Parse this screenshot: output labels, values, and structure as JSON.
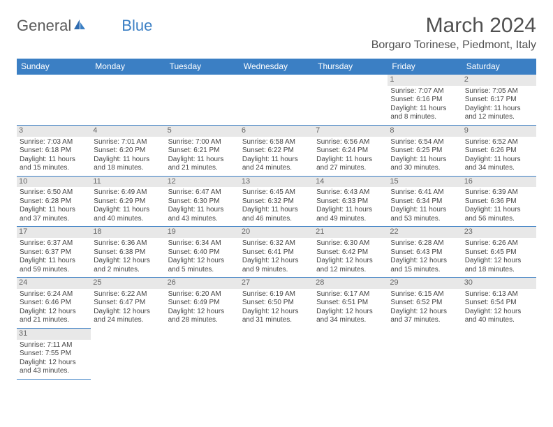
{
  "logo": {
    "general": "General",
    "blue": "Blue"
  },
  "title": "March 2024",
  "location": "Borgaro Torinese, Piedmont, Italy",
  "colors": {
    "header_bg": "#3b7fc4",
    "header_text": "#ffffff",
    "day_bg": "#e8e8e8",
    "border": "#3b7fc4",
    "text": "#444444",
    "title_text": "#505050"
  },
  "weekdays": [
    "Sunday",
    "Monday",
    "Tuesday",
    "Wednesday",
    "Thursday",
    "Friday",
    "Saturday"
  ],
  "cells": [
    {
      "day": "",
      "sunrise": "",
      "sunset": "",
      "daylight": ""
    },
    {
      "day": "",
      "sunrise": "",
      "sunset": "",
      "daylight": ""
    },
    {
      "day": "",
      "sunrise": "",
      "sunset": "",
      "daylight": ""
    },
    {
      "day": "",
      "sunrise": "",
      "sunset": "",
      "daylight": ""
    },
    {
      "day": "",
      "sunrise": "",
      "sunset": "",
      "daylight": ""
    },
    {
      "day": "1",
      "sunrise": "Sunrise: 7:07 AM",
      "sunset": "Sunset: 6:16 PM",
      "daylight": "Daylight: 11 hours and 8 minutes."
    },
    {
      "day": "2",
      "sunrise": "Sunrise: 7:05 AM",
      "sunset": "Sunset: 6:17 PM",
      "daylight": "Daylight: 11 hours and 12 minutes."
    },
    {
      "day": "3",
      "sunrise": "Sunrise: 7:03 AM",
      "sunset": "Sunset: 6:18 PM",
      "daylight": "Daylight: 11 hours and 15 minutes."
    },
    {
      "day": "4",
      "sunrise": "Sunrise: 7:01 AM",
      "sunset": "Sunset: 6:20 PM",
      "daylight": "Daylight: 11 hours and 18 minutes."
    },
    {
      "day": "5",
      "sunrise": "Sunrise: 7:00 AM",
      "sunset": "Sunset: 6:21 PM",
      "daylight": "Daylight: 11 hours and 21 minutes."
    },
    {
      "day": "6",
      "sunrise": "Sunrise: 6:58 AM",
      "sunset": "Sunset: 6:22 PM",
      "daylight": "Daylight: 11 hours and 24 minutes."
    },
    {
      "day": "7",
      "sunrise": "Sunrise: 6:56 AM",
      "sunset": "Sunset: 6:24 PM",
      "daylight": "Daylight: 11 hours and 27 minutes."
    },
    {
      "day": "8",
      "sunrise": "Sunrise: 6:54 AM",
      "sunset": "Sunset: 6:25 PM",
      "daylight": "Daylight: 11 hours and 30 minutes."
    },
    {
      "day": "9",
      "sunrise": "Sunrise: 6:52 AM",
      "sunset": "Sunset: 6:26 PM",
      "daylight": "Daylight: 11 hours and 34 minutes."
    },
    {
      "day": "10",
      "sunrise": "Sunrise: 6:50 AM",
      "sunset": "Sunset: 6:28 PM",
      "daylight": "Daylight: 11 hours and 37 minutes."
    },
    {
      "day": "11",
      "sunrise": "Sunrise: 6:49 AM",
      "sunset": "Sunset: 6:29 PM",
      "daylight": "Daylight: 11 hours and 40 minutes."
    },
    {
      "day": "12",
      "sunrise": "Sunrise: 6:47 AM",
      "sunset": "Sunset: 6:30 PM",
      "daylight": "Daylight: 11 hours and 43 minutes."
    },
    {
      "day": "13",
      "sunrise": "Sunrise: 6:45 AM",
      "sunset": "Sunset: 6:32 PM",
      "daylight": "Daylight: 11 hours and 46 minutes."
    },
    {
      "day": "14",
      "sunrise": "Sunrise: 6:43 AM",
      "sunset": "Sunset: 6:33 PM",
      "daylight": "Daylight: 11 hours and 49 minutes."
    },
    {
      "day": "15",
      "sunrise": "Sunrise: 6:41 AM",
      "sunset": "Sunset: 6:34 PM",
      "daylight": "Daylight: 11 hours and 53 minutes."
    },
    {
      "day": "16",
      "sunrise": "Sunrise: 6:39 AM",
      "sunset": "Sunset: 6:36 PM",
      "daylight": "Daylight: 11 hours and 56 minutes."
    },
    {
      "day": "17",
      "sunrise": "Sunrise: 6:37 AM",
      "sunset": "Sunset: 6:37 PM",
      "daylight": "Daylight: 11 hours and 59 minutes."
    },
    {
      "day": "18",
      "sunrise": "Sunrise: 6:36 AM",
      "sunset": "Sunset: 6:38 PM",
      "daylight": "Daylight: 12 hours and 2 minutes."
    },
    {
      "day": "19",
      "sunrise": "Sunrise: 6:34 AM",
      "sunset": "Sunset: 6:40 PM",
      "daylight": "Daylight: 12 hours and 5 minutes."
    },
    {
      "day": "20",
      "sunrise": "Sunrise: 6:32 AM",
      "sunset": "Sunset: 6:41 PM",
      "daylight": "Daylight: 12 hours and 9 minutes."
    },
    {
      "day": "21",
      "sunrise": "Sunrise: 6:30 AM",
      "sunset": "Sunset: 6:42 PM",
      "daylight": "Daylight: 12 hours and 12 minutes."
    },
    {
      "day": "22",
      "sunrise": "Sunrise: 6:28 AM",
      "sunset": "Sunset: 6:43 PM",
      "daylight": "Daylight: 12 hours and 15 minutes."
    },
    {
      "day": "23",
      "sunrise": "Sunrise: 6:26 AM",
      "sunset": "Sunset: 6:45 PM",
      "daylight": "Daylight: 12 hours and 18 minutes."
    },
    {
      "day": "24",
      "sunrise": "Sunrise: 6:24 AM",
      "sunset": "Sunset: 6:46 PM",
      "daylight": "Daylight: 12 hours and 21 minutes."
    },
    {
      "day": "25",
      "sunrise": "Sunrise: 6:22 AM",
      "sunset": "Sunset: 6:47 PM",
      "daylight": "Daylight: 12 hours and 24 minutes."
    },
    {
      "day": "26",
      "sunrise": "Sunrise: 6:20 AM",
      "sunset": "Sunset: 6:49 PM",
      "daylight": "Daylight: 12 hours and 28 minutes."
    },
    {
      "day": "27",
      "sunrise": "Sunrise: 6:19 AM",
      "sunset": "Sunset: 6:50 PM",
      "daylight": "Daylight: 12 hours and 31 minutes."
    },
    {
      "day": "28",
      "sunrise": "Sunrise: 6:17 AM",
      "sunset": "Sunset: 6:51 PM",
      "daylight": "Daylight: 12 hours and 34 minutes."
    },
    {
      "day": "29",
      "sunrise": "Sunrise: 6:15 AM",
      "sunset": "Sunset: 6:52 PM",
      "daylight": "Daylight: 12 hours and 37 minutes."
    },
    {
      "day": "30",
      "sunrise": "Sunrise: 6:13 AM",
      "sunset": "Sunset: 6:54 PM",
      "daylight": "Daylight: 12 hours and 40 minutes."
    },
    {
      "day": "31",
      "sunrise": "Sunrise: 7:11 AM",
      "sunset": "Sunset: 7:55 PM",
      "daylight": "Daylight: 12 hours and 43 minutes."
    },
    {
      "day": "",
      "sunrise": "",
      "sunset": "",
      "daylight": ""
    },
    {
      "day": "",
      "sunrise": "",
      "sunset": "",
      "daylight": ""
    },
    {
      "day": "",
      "sunrise": "",
      "sunset": "",
      "daylight": ""
    },
    {
      "day": "",
      "sunrise": "",
      "sunset": "",
      "daylight": ""
    },
    {
      "day": "",
      "sunrise": "",
      "sunset": "",
      "daylight": ""
    },
    {
      "day": "",
      "sunrise": "",
      "sunset": "",
      "daylight": ""
    }
  ]
}
